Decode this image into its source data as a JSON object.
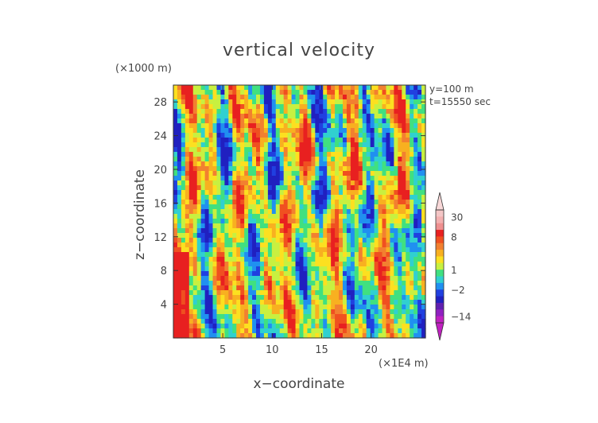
{
  "chart_data": {
    "type": "heatmap",
    "title": "vertical velocity",
    "xlabel": "x−coordinate",
    "ylabel": "z−coordinate",
    "x_unit": "(×1E4 m)",
    "y_unit": "(×1000 m)",
    "annotations": [
      "y=100 m",
      "t=15550 sec"
    ],
    "xlim": [
      0,
      25.5
    ],
    "ylim": [
      0,
      30
    ],
    "xticks": [
      5,
      10,
      15,
      20
    ],
    "yticks": [
      4,
      8,
      12,
      16,
      20,
      24,
      28
    ],
    "colorbar": {
      "tick_labels": [
        "30",
        "8",
        "1",
        "−2",
        "−14"
      ],
      "tick_values": [
        30,
        8,
        1,
        -2,
        -14
      ],
      "levels": [
        {
          "from": 30,
          "to": 40,
          "color": "#f4c6c6"
        },
        {
          "from": 20,
          "to": 30,
          "color": "#f3b0b0"
        },
        {
          "from": 12,
          "to": 20,
          "color": "#ef9090"
        },
        {
          "from": 8,
          "to": 12,
          "color": "#e82020"
        },
        {
          "from": 6,
          "to": 8,
          "color": "#f05020"
        },
        {
          "from": 4,
          "to": 6,
          "color": "#f28030"
        },
        {
          "from": 3,
          "to": 4,
          "color": "#f8b020"
        },
        {
          "from": 2,
          "to": 3,
          "color": "#fce020"
        },
        {
          "from": 1,
          "to": 2,
          "color": "#c8f040"
        },
        {
          "from": 0,
          "to": 1,
          "color": "#40e080"
        },
        {
          "from": -1,
          "to": 0,
          "color": "#30d0d0"
        },
        {
          "from": -2,
          "to": -1,
          "color": "#2090f0"
        },
        {
          "from": -4,
          "to": -2,
          "color": "#2040e0"
        },
        {
          "from": -6,
          "to": -4,
          "color": "#2020c0"
        },
        {
          "from": -10,
          "to": -6,
          "color": "#6020b0"
        },
        {
          "from": -14,
          "to": -10,
          "color": "#9020c0"
        },
        {
          "from": -20,
          "to": -14,
          "color": "#c020c0"
        }
      ]
    }
  }
}
